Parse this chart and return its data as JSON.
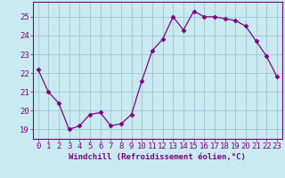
{
  "x": [
    0,
    1,
    2,
    3,
    4,
    5,
    6,
    7,
    8,
    9,
    10,
    11,
    12,
    13,
    14,
    15,
    16,
    17,
    18,
    19,
    20,
    21,
    22,
    23
  ],
  "y": [
    22.2,
    21.0,
    20.4,
    19.0,
    19.2,
    19.8,
    19.9,
    19.2,
    19.3,
    19.8,
    21.6,
    23.2,
    23.8,
    25.0,
    24.3,
    25.3,
    25.0,
    25.0,
    24.9,
    24.8,
    24.5,
    23.7,
    22.9,
    21.8
  ],
  "line_color": "#800080",
  "marker": "D",
  "marker_size": 2.5,
  "bg_color": "#c8eaf0",
  "grid_color": "#a8cad8",
  "xlabel": "Windchill (Refroidissement éolien,°C)",
  "yticks": [
    19,
    20,
    21,
    22,
    23,
    24,
    25
  ],
  "xticks": [
    0,
    1,
    2,
    3,
    4,
    5,
    6,
    7,
    8,
    9,
    10,
    11,
    12,
    13,
    14,
    15,
    16,
    17,
    18,
    19,
    20,
    21,
    22,
    23
  ],
  "xlim": [
    -0.5,
    23.5
  ],
  "ylim": [
    18.5,
    25.8
  ],
  "axis_color": "#800080",
  "tick_color": "#800080",
  "label_color": "#800080",
  "label_fontsize": 6.5,
  "tick_fontsize": 6.5
}
